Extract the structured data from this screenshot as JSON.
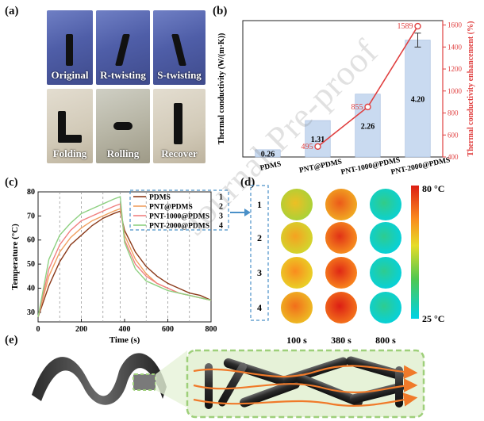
{
  "panels": {
    "a": "(a)",
    "b": "(b)",
    "c": "(c)",
    "d": "(d)",
    "e": "(e)"
  },
  "photos": [
    "Original",
    "R-twisting",
    "S-twisting",
    "Folding",
    "Rolling",
    "Recover"
  ],
  "watermark": "Journal Pre-proof",
  "chart_b": {
    "type": "bar",
    "categories": [
      "PDMS",
      "PNT@PDMS",
      "PNT-1000@PDMS",
      "PNT-2000@PDMS"
    ],
    "values": [
      0.26,
      1.31,
      2.26,
      4.2
    ],
    "value_labels": [
      "0.26",
      "1.31",
      "2.26",
      "4.20"
    ],
    "ylabel": "Thermal conductivity (W/(m·K))",
    "ylim": [
      0,
      4.9
    ],
    "ytick_count": 0,
    "y2label": "Thermal conductivity enhancement (%)",
    "y2lim": [
      400,
      1640
    ],
    "y2ticks": [
      400,
      600,
      800,
      1000,
      1200,
      1400,
      1600
    ],
    "enhancement": [
      {
        "category": "PNT@PDMS",
        "value": 495,
        "label": "495"
      },
      {
        "category": "PNT-1000@PDMS",
        "value": 855,
        "label": "855"
      },
      {
        "category": "PNT-2000@PDMS",
        "value": 1589,
        "label": "1589"
      }
    ],
    "bar_color": "#c9daf0",
    "line_color": "#e04040"
  },
  "chart_c": {
    "type": "line",
    "xlabel": "Time (s)",
    "ylabel": "Temperature (°C)",
    "xlim": [
      0,
      800
    ],
    "ylim": [
      26,
      80
    ],
    "xticks": [
      0,
      200,
      400,
      600,
      800
    ],
    "yticks": [
      30,
      40,
      50,
      60,
      70,
      80
    ],
    "dashed_times": [
      100,
      200,
      300,
      380,
      500,
      600,
      700
    ],
    "legend": [
      {
        "name": "PDMS",
        "number": "1",
        "color": "#8b3a1a"
      },
      {
        "name": "PNT@PDMS",
        "number": "2",
        "color": "#f0a060"
      },
      {
        "name": "PNT-1000@PDMS",
        "number": "3",
        "color": "#f08080"
      },
      {
        "name": "PNT-2000@PDMS",
        "number": "4",
        "color": "#8ed081"
      }
    ],
    "series": [
      {
        "name": "PDMS",
        "color": "#8b3a1a",
        "points": [
          [
            0,
            28
          ],
          [
            50,
            41
          ],
          [
            100,
            51
          ],
          [
            150,
            58
          ],
          [
            200,
            62
          ],
          [
            250,
            66
          ],
          [
            300,
            69
          ],
          [
            350,
            71
          ],
          [
            380,
            72
          ],
          [
            400,
            64
          ],
          [
            450,
            55
          ],
          [
            500,
            49
          ],
          [
            550,
            45
          ],
          [
            600,
            42
          ],
          [
            650,
            40
          ],
          [
            700,
            38
          ],
          [
            750,
            37
          ],
          [
            800,
            35
          ]
        ]
      },
      {
        "name": "PNT@PDMS",
        "color": "#f0a060",
        "points": [
          [
            0,
            28
          ],
          [
            50,
            45
          ],
          [
            100,
            55
          ],
          [
            150,
            61
          ],
          [
            200,
            65
          ],
          [
            250,
            68
          ],
          [
            300,
            70
          ],
          [
            350,
            72
          ],
          [
            380,
            73
          ],
          [
            400,
            62
          ],
          [
            450,
            52
          ],
          [
            500,
            46
          ],
          [
            550,
            42
          ],
          [
            600,
            40
          ],
          [
            650,
            38
          ],
          [
            700,
            37
          ],
          [
            750,
            36
          ],
          [
            800,
            35
          ]
        ]
      },
      {
        "name": "PNT-1000@PDMS",
        "color": "#f08080",
        "points": [
          [
            0,
            28
          ],
          [
            50,
            48
          ],
          [
            100,
            58
          ],
          [
            150,
            64
          ],
          [
            200,
            68
          ],
          [
            250,
            70
          ],
          [
            300,
            72
          ],
          [
            350,
            74
          ],
          [
            380,
            75
          ],
          [
            400,
            60
          ],
          [
            450,
            50
          ],
          [
            500,
            45
          ],
          [
            550,
            42
          ],
          [
            600,
            40
          ],
          [
            650,
            38
          ],
          [
            700,
            37
          ],
          [
            750,
            36
          ],
          [
            800,
            35
          ]
        ]
      },
      {
        "name": "PNT-2000@PDMS",
        "color": "#8ed081",
        "points": [
          [
            0,
            28
          ],
          [
            50,
            52
          ],
          [
            100,
            62
          ],
          [
            150,
            67
          ],
          [
            200,
            71
          ],
          [
            250,
            73
          ],
          [
            300,
            75
          ],
          [
            350,
            77
          ],
          [
            380,
            78
          ],
          [
            400,
            59
          ],
          [
            450,
            48
          ],
          [
            500,
            43
          ],
          [
            550,
            41
          ],
          [
            600,
            39
          ],
          [
            650,
            38
          ],
          [
            700,
            37
          ],
          [
            750,
            36
          ],
          [
            800,
            35
          ]
        ]
      }
    ]
  },
  "panel_d": {
    "rows": [
      "1",
      "2",
      "3",
      "4"
    ],
    "times": [
      "100 s",
      "380 s",
      "800 s"
    ],
    "scale_max": "80 °C",
    "scale_min": "25 °C",
    "temps": [
      [
        58,
        70,
        33
      ],
      [
        62,
        74,
        32
      ],
      [
        65,
        75,
        32
      ],
      [
        68,
        77,
        32
      ]
    ]
  }
}
